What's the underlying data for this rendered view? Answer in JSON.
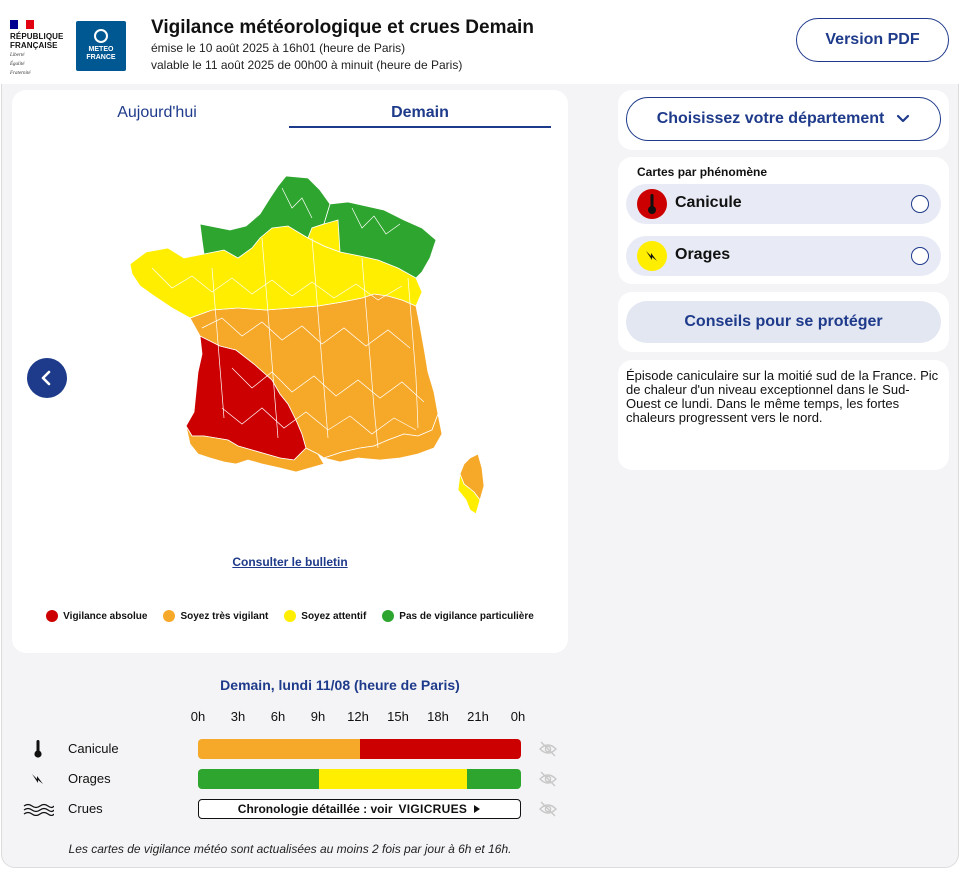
{
  "header": {
    "republic_lines": [
      "RÉPUBLIQUE",
      "FRANÇAISE"
    ],
    "motto_lines": [
      "Liberté",
      "Égalité",
      "Fraternité"
    ],
    "meteo_logo_lines": [
      "METEO",
      "FRANCE"
    ],
    "title": "Vigilance météorologique et crues Demain",
    "emitted": "émise le 10 août 2025 à 16h01 (heure de Paris)",
    "valid": "valable le 11 août 2025 de 00h00 à minuit (heure de Paris)",
    "pdf_button": "Version PDF",
    "colors": {
      "flag_blue": "#000091",
      "flag_white": "#ffffff",
      "flag_red": "#e1000f",
      "meteo_blue": "#005892"
    }
  },
  "tabs": {
    "today": "Aujourd'hui",
    "tomorrow": "Demain",
    "active": "tomorrow"
  },
  "map": {
    "bulletin_link": "Consulter le bulletin",
    "prev_icon": "chevron-left-icon",
    "legend": [
      {
        "label": "Vigilance absolue",
        "color": "#cc0000"
      },
      {
        "label": "Soyez très vigilant",
        "color": "#f6a929"
      },
      {
        "label": "Soyez attentif",
        "color": "#ffee00"
      },
      {
        "label": "Pas de vigilance particulière",
        "color": "#2ea52e"
      }
    ]
  },
  "sidebar": {
    "department_select": "Choisissez votre département",
    "phenomena_title": "Cartes par phénomène",
    "phenomena": [
      {
        "label": "Canicule",
        "icon": "thermometer-icon",
        "color": "#cc0000"
      },
      {
        "label": "Orages",
        "icon": "lightning-icon",
        "color": "#ffee00"
      }
    ],
    "advice_button": "Conseils pour se protéger",
    "description": "Épisode caniculaire sur la moitié sud de la France. Pic de chaleur d'un niveau exceptionnel dans le Sud-Ouest ce lundi. Dans le même temps, les fortes chaleurs progressent vers le nord."
  },
  "timeline": {
    "title": "Demain, lundi 11/08 (heure de Paris)",
    "hours": [
      "0h",
      "3h",
      "6h",
      "9h",
      "12h",
      "15h",
      "18h",
      "21h",
      "0h"
    ],
    "rows": [
      {
        "label": "Canicule",
        "icon": "thermometer-icon",
        "segments": [
          {
            "from_h": 0,
            "to_h": 12,
            "color": "#f6a929"
          },
          {
            "from_h": 12,
            "to_h": 24,
            "color": "#cc0000"
          }
        ]
      },
      {
        "label": "Orages",
        "icon": "lightning-icon",
        "segments": [
          {
            "from_h": 0,
            "to_h": 9,
            "color": "#2ea52e"
          },
          {
            "from_h": 9,
            "to_h": 20,
            "color": "#ffee00"
          },
          {
            "from_h": 20,
            "to_h": 24,
            "color": "#2ea52e"
          }
        ]
      },
      {
        "label": "Crues",
        "icon": "waves-icon",
        "link_text": "Chronologie détaillée : voir",
        "link_brand": "VIGICRUES"
      }
    ],
    "footnote": "Les cartes de vigilance météo sont actualisées au moins 2 fois par jour à 6h et 16h."
  }
}
